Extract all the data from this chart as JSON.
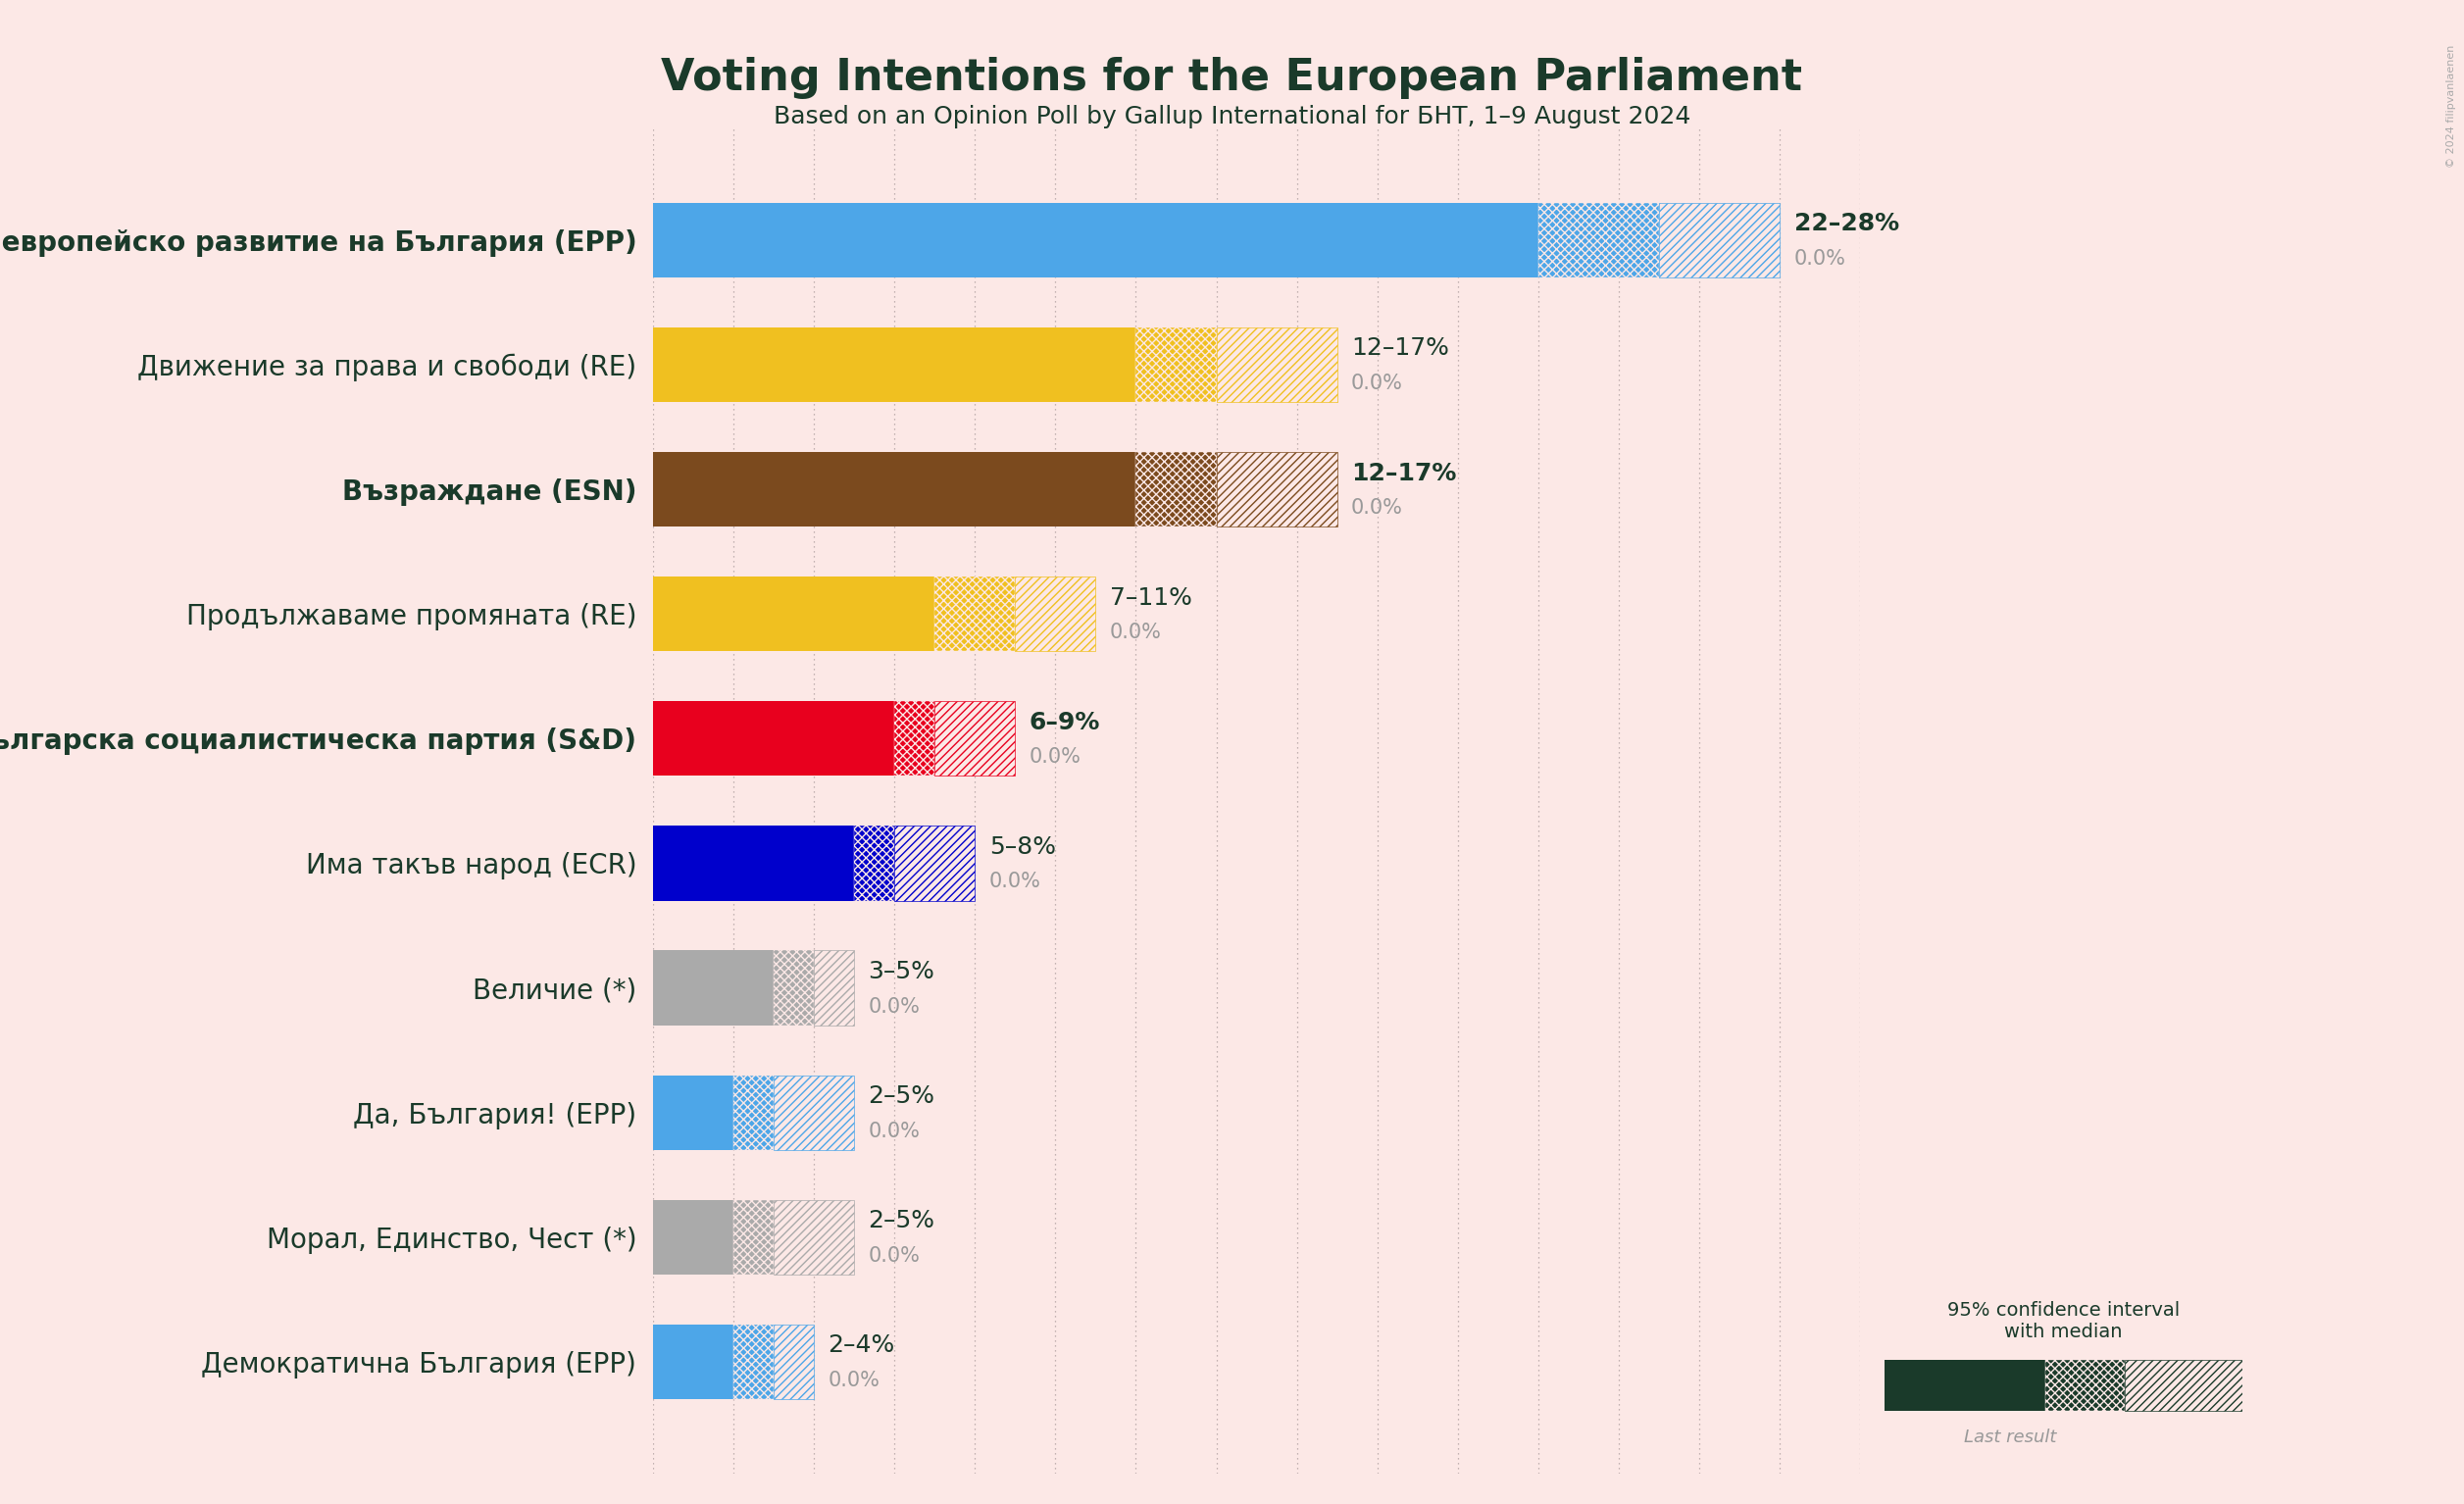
{
  "title": "Voting Intentions for the European Parliament",
  "subtitle": "Based on an Opinion Poll by Gallup International for БНТ, 1–9 August 2024",
  "background_color": "#fce8e6",
  "title_color": "#1a3a2a",
  "subtitle_color": "#1a3a2a",
  "label_color": "#1a3a2a",
  "parties": [
    {
      "name": "Граждани за европейско развитие на България (EPP)",
      "low": 22,
      "median": 25,
      "high": 28,
      "last": 0.0,
      "color": "#4da6e8",
      "label": "22–28%",
      "bold": true
    },
    {
      "name": "Движение за права и свободи (RE)",
      "low": 12,
      "median": 14,
      "high": 17,
      "last": 0.0,
      "color": "#f0c020",
      "label": "12–17%",
      "bold": false
    },
    {
      "name": "Възраждане (ESN)",
      "low": 12,
      "median": 14,
      "high": 17,
      "last": 0.0,
      "color": "#7b4a1e",
      "label": "12–17%",
      "bold": true
    },
    {
      "name": "Продължаваме промяната (RE)",
      "low": 7,
      "median": 9,
      "high": 11,
      "last": 0.0,
      "color": "#f0c020",
      "label": "7–11%",
      "bold": false
    },
    {
      "name": "Българска социалистическа партия (S&D)",
      "low": 6,
      "median": 7,
      "high": 9,
      "last": 0.0,
      "color": "#e8001e",
      "label": "6–9%",
      "bold": true
    },
    {
      "name": "Има такъв народ (ECR)",
      "low": 5,
      "median": 6,
      "high": 8,
      "last": 0.0,
      "color": "#0000cc",
      "label": "5–8%",
      "bold": false
    },
    {
      "name": "Величие (*)",
      "low": 3,
      "median": 4,
      "high": 5,
      "last": 0.0,
      "color": "#aaaaaa",
      "label": "3–5%",
      "bold": false
    },
    {
      "name": "Да, България! (EPP)",
      "low": 2,
      "median": 3,
      "high": 5,
      "last": 0.0,
      "color": "#4da6e8",
      "label": "2–5%",
      "bold": false
    },
    {
      "name": "Морал, Единство, Чест (*)",
      "low": 2,
      "median": 3,
      "high": 5,
      "last": 0.0,
      "color": "#aaaaaa",
      "label": "2–5%",
      "bold": false
    },
    {
      "name": "Демократична България (EPP)",
      "low": 2,
      "median": 3,
      "high": 4,
      "last": 0.0,
      "color": "#4da6e8",
      "label": "2–4%",
      "bold": false
    }
  ],
  "xlim": [
    0,
    30
  ],
  "legend_color": "#1a3a2a",
  "grid_color": "#b0a0a0",
  "dark_green": "#1a3a2a",
  "note": "© 2024 filipvanlaenen",
  "title_fontsize": 32,
  "subtitle_fontsize": 18,
  "label_fontsize": 20,
  "value_fontsize": 18,
  "last_fontsize": 15,
  "bar_height": 0.6
}
